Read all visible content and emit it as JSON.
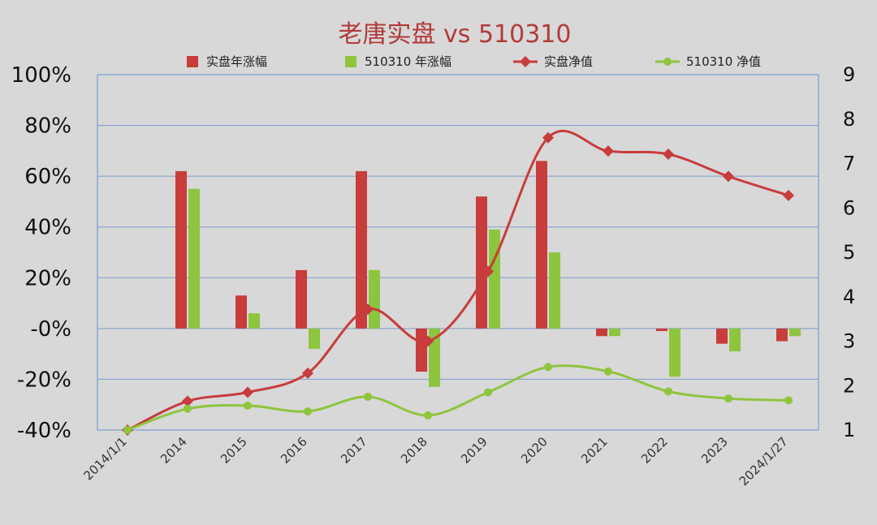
{
  "chart_data": {
    "type": "bar",
    "title": "老唐实盘 vs 510310",
    "categories": [
      "2014/1/1",
      "2014",
      "2015",
      "2016",
      "2017",
      "2018",
      "2019",
      "2020",
      "2021",
      "2022",
      "2023",
      "2024/1/27"
    ],
    "series": [
      {
        "name": "实盘年涨幅",
        "type": "bar",
        "axis": "left",
        "color": "#c83c3c",
        "values": [
          null,
          62,
          13,
          23,
          62,
          -17,
          52,
          66,
          -3,
          -1,
          -6,
          -5
        ]
      },
      {
        "name": "510310 年涨幅",
        "type": "bar",
        "axis": "left",
        "color": "#8dc53e",
        "values": [
          null,
          55,
          6,
          -8,
          23,
          -23,
          39,
          30,
          -3,
          -19,
          -9,
          -3
        ]
      },
      {
        "name": "实盘净值",
        "type": "line",
        "axis": "right",
        "marker": "diamond",
        "color": "#c83c3c",
        "values": [
          1.0,
          1.65,
          1.85,
          2.28,
          3.72,
          3.0,
          4.57,
          7.58,
          7.28,
          7.21,
          6.71,
          6.28
        ]
      },
      {
        "name": "510310 净值",
        "type": "line",
        "axis": "right",
        "marker": "circle",
        "color": "#8dc53e",
        "values": [
          1.0,
          1.48,
          1.55,
          1.42,
          1.75,
          1.33,
          1.85,
          2.42,
          2.32,
          1.87,
          1.71,
          1.67
        ]
      }
    ],
    "yleft": {
      "ticks": [
        "100%",
        "80%",
        "60%",
        "40%",
        "20%",
        "-0%",
        "-20%",
        "-40%"
      ],
      "min": -40,
      "max": 100
    },
    "yright": {
      "ticks": [
        "9",
        "8",
        "7",
        "6",
        "5",
        "4",
        "3",
        "2",
        "1"
      ],
      "min": 1,
      "max": 9
    },
    "grid": true,
    "legend": "top"
  }
}
